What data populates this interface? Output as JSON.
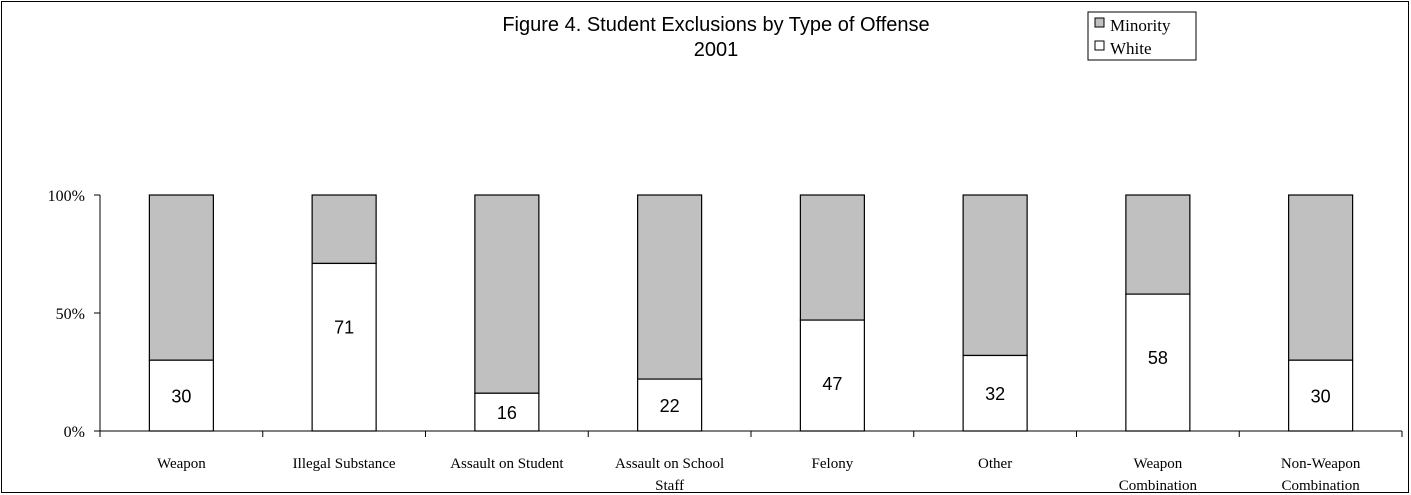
{
  "chart_data": {
    "type": "bar",
    "stacked": "percent",
    "title": "Figure 4. Student Exclusions by Type of Offense",
    "subtitle": "2001",
    "categories": [
      [
        "Weapon"
      ],
      [
        "Illegal Substance"
      ],
      [
        "Assault on Student"
      ],
      [
        "Assault on School",
        "Staff"
      ],
      [
        "Felony"
      ],
      [
        "Other"
      ],
      [
        "Weapon",
        "Combination"
      ],
      [
        "Non-Weapon",
        "Combination"
      ]
    ],
    "series": [
      {
        "name": "White",
        "values": [
          30,
          71,
          16,
          22,
          47,
          32,
          58,
          30
        ],
        "color": "#ffffff"
      },
      {
        "name": "Minority",
        "values": [
          70,
          29,
          84,
          78,
          53,
          68,
          42,
          70
        ],
        "color": "#c0c0c0"
      }
    ],
    "legend_order": [
      "Minority",
      "White"
    ],
    "ylim": [
      0,
      100
    ],
    "yticks": [
      "0%",
      "50%",
      "100%"
    ],
    "grid": false,
    "legend_position": "top-right"
  }
}
